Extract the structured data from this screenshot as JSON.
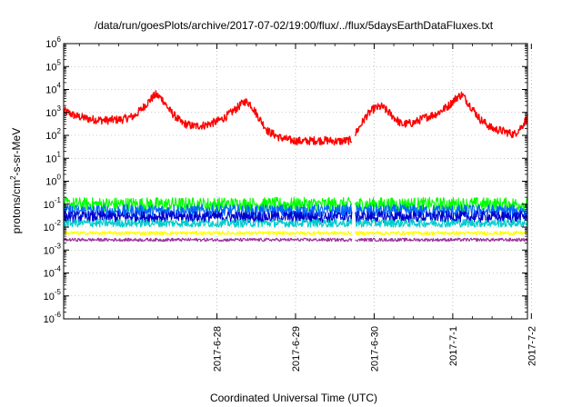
{
  "chart_data": {
    "type": "line",
    "title": "/data/run/goesPlots/archive/2017-07-02/19:00/flux/../flux/5daysEarthDataFluxes.txt",
    "xlabel": "Coordinated Universal Time (UTC)",
    "ylabel": {
      "prefix": "protons/cm",
      "sup": "2",
      "suffix": "-s-sr-MeV"
    },
    "yscale": "log",
    "ylim": [
      1e-06,
      1000000.0
    ],
    "xlim": [
      -1.95,
      3.95
    ],
    "x_unit": "days relative to 2017-6-28 00:00 UTC",
    "y_ticks": [
      {
        "exp": -6,
        "base": "10",
        "sup": "-6"
      },
      {
        "exp": -5,
        "base": "10",
        "sup": "-5"
      },
      {
        "exp": -4,
        "base": "10",
        "sup": "-4"
      },
      {
        "exp": -3,
        "base": "10",
        "sup": "-3"
      },
      {
        "exp": -2,
        "base": "10",
        "sup": "-2"
      },
      {
        "exp": -1,
        "base": "10",
        "sup": "-1"
      },
      {
        "exp": 0,
        "base": "10",
        "sup": "0"
      },
      {
        "exp": 1,
        "base": "10",
        "sup": "1"
      },
      {
        "exp": 2,
        "base": "10",
        "sup": "2"
      },
      {
        "exp": 3,
        "base": "10",
        "sup": "3"
      },
      {
        "exp": 4,
        "base": "10",
        "sup": "4"
      },
      {
        "exp": 5,
        "base": "10",
        "sup": "5"
      },
      {
        "exp": 6,
        "base": "10",
        "sup": "6"
      }
    ],
    "x_ticks": [
      {
        "day": 0,
        "label": "2017-6-28"
      },
      {
        "day": 1,
        "label": "2017-6-29"
      },
      {
        "day": 2,
        "label": "2017-6-30"
      },
      {
        "day": 3,
        "label": "2017-7-1"
      },
      {
        "day": 4,
        "label": "2017-7-2"
      }
    ],
    "grid": true,
    "gap": [
      1.72,
      1.76
    ],
    "series": [
      {
        "color": "#ff0000",
        "noise": 0.18,
        "points": [
          [
            -1.95,
            1200
          ],
          [
            -1.8,
            700
          ],
          [
            -1.6,
            500
          ],
          [
            -1.4,
            450
          ],
          [
            -1.2,
            500
          ],
          [
            -1.05,
            700
          ],
          [
            -0.95,
            1500
          ],
          [
            -0.85,
            3500
          ],
          [
            -0.78,
            6000
          ],
          [
            -0.7,
            4000
          ],
          [
            -0.6,
            1200
          ],
          [
            -0.45,
            350
          ],
          [
            -0.3,
            250
          ],
          [
            -0.15,
            280
          ],
          [
            0.0,
            400
          ],
          [
            0.1,
            600
          ],
          [
            0.25,
            1500
          ],
          [
            0.35,
            3000
          ],
          [
            0.42,
            2500
          ],
          [
            0.52,
            700
          ],
          [
            0.65,
            150
          ],
          [
            0.8,
            80
          ],
          [
            0.95,
            60
          ],
          [
            1.1,
            55
          ],
          [
            1.25,
            60
          ],
          [
            1.4,
            60
          ],
          [
            1.55,
            55
          ],
          [
            1.7,
            60
          ],
          [
            1.78,
            150
          ],
          [
            1.9,
            700
          ],
          [
            2.0,
            1500
          ],
          [
            2.1,
            1800
          ],
          [
            2.2,
            900
          ],
          [
            2.35,
            300
          ],
          [
            2.5,
            350
          ],
          [
            2.65,
            600
          ],
          [
            2.8,
            900
          ],
          [
            2.95,
            2000
          ],
          [
            3.05,
            4500
          ],
          [
            3.12,
            6000
          ],
          [
            3.2,
            2500
          ],
          [
            3.35,
            500
          ],
          [
            3.5,
            200
          ],
          [
            3.65,
            150
          ],
          [
            3.78,
            110
          ],
          [
            3.88,
            250
          ],
          [
            3.95,
            600
          ]
        ]
      },
      {
        "color": "#00ff00",
        "noise": 0.3,
        "points": [
          [
            -1.95,
            0.1
          ],
          [
            3.95,
            0.1
          ]
        ]
      },
      {
        "color": "#0066ff",
        "noise": 0.28,
        "points": [
          [
            -1.95,
            0.05
          ],
          [
            3.95,
            0.05
          ]
        ]
      },
      {
        "color": "#0000cc",
        "noise": 0.25,
        "points": [
          [
            -1.95,
            0.028
          ],
          [
            3.95,
            0.028
          ]
        ]
      },
      {
        "color": "#00cccc",
        "noise": 0.18,
        "points": [
          [
            -1.95,
            0.015
          ],
          [
            3.95,
            0.015
          ]
        ]
      },
      {
        "color": "#ffff00",
        "noise": 0.08,
        "points": [
          [
            -1.95,
            0.0055
          ],
          [
            3.95,
            0.0055
          ]
        ]
      },
      {
        "color": "#993399",
        "noise": 0.07,
        "points": [
          [
            -1.95,
            0.0028
          ],
          [
            3.95,
            0.0028
          ]
        ]
      }
    ]
  }
}
